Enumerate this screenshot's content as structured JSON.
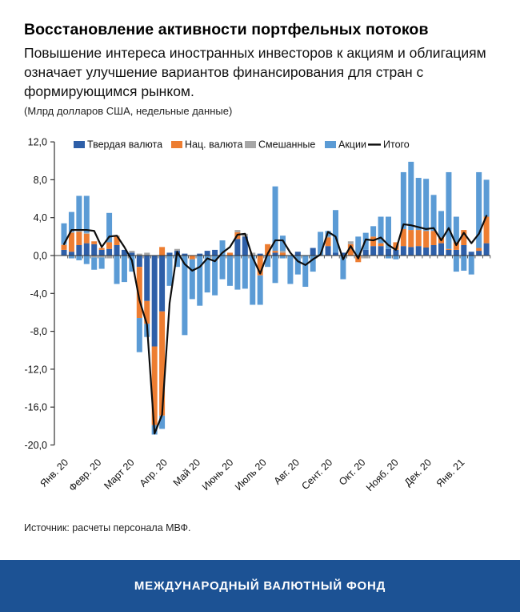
{
  "header": {
    "title": "Восстановление активности портфельных потоков",
    "subtitle": "Повышение интереса иностранных инвесторов к акциям и облигациям означает улучшение вариантов финансирования для стран с формирующимся рынком.",
    "unit_note": "(Млрд долларов США, недельные данные)"
  },
  "source": "Источник: расчеты персонала МВФ.",
  "footer": {
    "org_name": "МЕЖДУНАРОДНЫЙ ВАЛЮТНЫЙ ФОНД",
    "bg_color": "#1C5294"
  },
  "chart_data": {
    "type": "bar",
    "stacked": true,
    "x_unit": "week",
    "weeks": 57,
    "ylim": [
      -20,
      12
    ],
    "yticks": [
      12,
      8,
      4,
      0,
      -4,
      -8,
      -12,
      -16,
      -20
    ],
    "ytick_labels": [
      "12,0",
      "8,0",
      "4,0",
      "0,0",
      "-4,0",
      "-8,0",
      "-12,0",
      "-16,0",
      "-20,0"
    ],
    "months": [
      "Янв. 20",
      "Февр. 20",
      "Март 20",
      "Апр. 20",
      "Май 20",
      "Июнь 20",
      "Июль 20",
      "Авг. 20",
      "Сент. 20",
      "Окт. 20",
      "Нояб. 20",
      "Дек. 20",
      "Янв. 21"
    ],
    "grid": false,
    "legend_position": "top",
    "series": [
      {
        "name": "Твердая валюта",
        "color": "#2E5FA8",
        "pos": [
          0.6,
          0.4,
          1.1,
          1.3,
          1.2,
          0.6,
          0.7,
          1.1,
          0.6,
          0.3,
          0,
          0,
          0,
          0,
          0.3,
          0.5,
          0.2,
          0,
          0.2,
          0.5,
          0.6,
          0,
          0,
          1.75,
          2.0,
          0,
          0.2,
          0,
          0.3,
          0,
          0,
          0.4,
          0,
          0.8,
          0,
          1.0,
          0.3,
          0.3,
          0,
          0,
          0.6,
          1.0,
          1.0,
          0.7,
          0.6,
          1.0,
          0.9,
          1.0,
          0.85,
          1.1,
          1.3,
          0.6,
          0.6,
          1.1,
          0.4,
          0.5,
          1.3
        ],
        "neg": [
          0,
          0,
          0,
          0,
          0,
          0,
          0,
          0,
          0,
          0,
          -1.2,
          -4.8,
          -9.6,
          -5.9,
          0,
          0,
          0,
          0,
          0,
          0,
          0,
          0,
          0,
          0,
          0,
          0,
          0,
          0,
          0,
          0,
          0,
          0,
          0,
          0,
          0,
          0,
          0,
          0,
          0,
          0,
          0,
          0,
          0,
          0,
          0,
          0,
          0,
          0,
          0,
          0,
          0,
          0,
          0,
          0,
          0,
          0,
          0
        ]
      },
      {
        "name": "Нац. валюта",
        "color": "#ED7D31",
        "pos": [
          0.5,
          2.0,
          1.4,
          1.0,
          0.3,
          0.2,
          0.7,
          0.9,
          0,
          0,
          0,
          0,
          0,
          0.9,
          0,
          0,
          0,
          0,
          0,
          0,
          0,
          0,
          0.3,
          0.7,
          0,
          0,
          0,
          1.2,
          0.2,
          0.3,
          0,
          0,
          0,
          0,
          0,
          0.9,
          0,
          0,
          1.2,
          0,
          0,
          1.0,
          0.3,
          0,
          0.8,
          1.8,
          1.8,
          1.7,
          1.75,
          1.5,
          0.6,
          0.1,
          0.8,
          1.6,
          0,
          0.3,
          2.8
        ],
        "neg": [
          0,
          0,
          0,
          0,
          0,
          0,
          0,
          0,
          0,
          0,
          -5.4,
          -2.4,
          -8.3,
          -11.0,
          0,
          0,
          0,
          -0.4,
          0,
          0,
          0,
          0,
          0,
          0,
          0,
          0,
          -2.1,
          0,
          0,
          0,
          0,
          0,
          0,
          0,
          0,
          0,
          0,
          0,
          0,
          -0.7,
          0,
          0,
          0,
          0,
          0,
          0,
          0,
          0,
          0,
          0,
          0,
          0,
          0,
          0,
          0,
          0,
          0
        ]
      },
      {
        "name": "Смешанные",
        "color": "#A7A7A7",
        "pos": [
          0.1,
          0.1,
          0.1,
          0.1,
          0,
          0,
          0,
          0.1,
          0,
          0.2,
          0.2,
          0.3,
          0,
          0,
          0,
          0.2,
          0,
          0,
          0,
          0,
          0,
          0,
          0,
          0.25,
          0.3,
          0.3,
          0,
          0,
          0,
          0.2,
          0,
          0,
          0,
          0,
          0,
          0.1,
          0,
          0,
          0.3,
          0,
          0,
          0,
          0,
          0,
          0,
          0,
          0,
          0,
          0,
          0,
          0,
          0,
          0,
          0,
          0,
          0,
          0
        ],
        "neg": [
          0,
          0,
          0,
          0,
          -0.2,
          -0.2,
          -0.3,
          0,
          0,
          0,
          0,
          0,
          0,
          0,
          0,
          0,
          0,
          0,
          0,
          0,
          0,
          0,
          0,
          0,
          0,
          0,
          0,
          0,
          0,
          0,
          0,
          0,
          0,
          0,
          0,
          0,
          0,
          0,
          0,
          0,
          -0.3,
          0,
          0,
          0,
          0,
          0,
          0,
          0,
          0,
          0,
          0,
          0,
          0,
          0,
          0,
          0,
          0
        ]
      },
      {
        "name": "Акции",
        "color": "#5B9BD5",
        "pos": [
          2.2,
          2.1,
          3.7,
          3.9,
          0,
          0,
          3.1,
          0,
          0,
          0,
          0,
          0,
          0,
          0,
          0,
          0,
          0,
          0,
          0,
          0,
          0,
          1.6,
          0,
          0,
          0,
          0,
          0,
          0,
          6.8,
          1.6,
          0,
          0,
          0,
          0,
          2.5,
          0.6,
          4.5,
          0,
          0,
          2.0,
          1.8,
          1.1,
          2.8,
          3.4,
          0,
          6.0,
          7.2,
          5.5,
          5.5,
          3.8,
          2.8,
          8.1,
          2.7,
          0,
          0,
          8.0,
          3.9
        ],
        "neg": [
          0,
          -0.3,
          -0.5,
          -0.9,
          -1.3,
          -1.2,
          0,
          -3.0,
          -2.8,
          -1.7,
          -3.6,
          -1.4,
          -1.0,
          -1.4,
          -3.2,
          -1.2,
          -8.4,
          -4.2,
          -5.3,
          -3.9,
          -4.2,
          -2.5,
          -3.2,
          -3.6,
          -3.5,
          -5.2,
          -3.1,
          -1.2,
          -2.9,
          -0.3,
          -3.0,
          -2.0,
          -3.3,
          -1.7,
          0,
          0,
          0,
          -2.5,
          0,
          0,
          0,
          0,
          0,
          -0.3,
          -0.4,
          0,
          0,
          0,
          0,
          0,
          0,
          0,
          -1.7,
          -1.6,
          -2.0,
          0,
          0
        ]
      }
    ],
    "total_line": {
      "name": "Итого",
      "color": "#0d0d0d",
      "values": [
        1.2,
        2.7,
        2.7,
        2.7,
        2.6,
        0.9,
        2.0,
        2.1,
        0.9,
        -0.5,
        -4.7,
        -7.3,
        -18.8,
        -16.8,
        -5.0,
        0.4,
        -0.9,
        -1.6,
        -1.2,
        -0.3,
        -0.6,
        0.3,
        0.9,
        2.2,
        2.3,
        -0.2,
        -1.9,
        0.2,
        1.6,
        1.6,
        0.3,
        -0.6,
        -1.0,
        -0.4,
        0.1,
        2.5,
        2.0,
        -0.4,
        1.0,
        -0.3,
        1.7,
        1.6,
        1.9,
        1.1,
        0.6,
        3.3,
        3.2,
        3.0,
        2.8,
        2.9,
        1.6,
        2.9,
        1.1,
        2.4,
        1.3,
        2.3,
        4.2
      ]
    }
  }
}
